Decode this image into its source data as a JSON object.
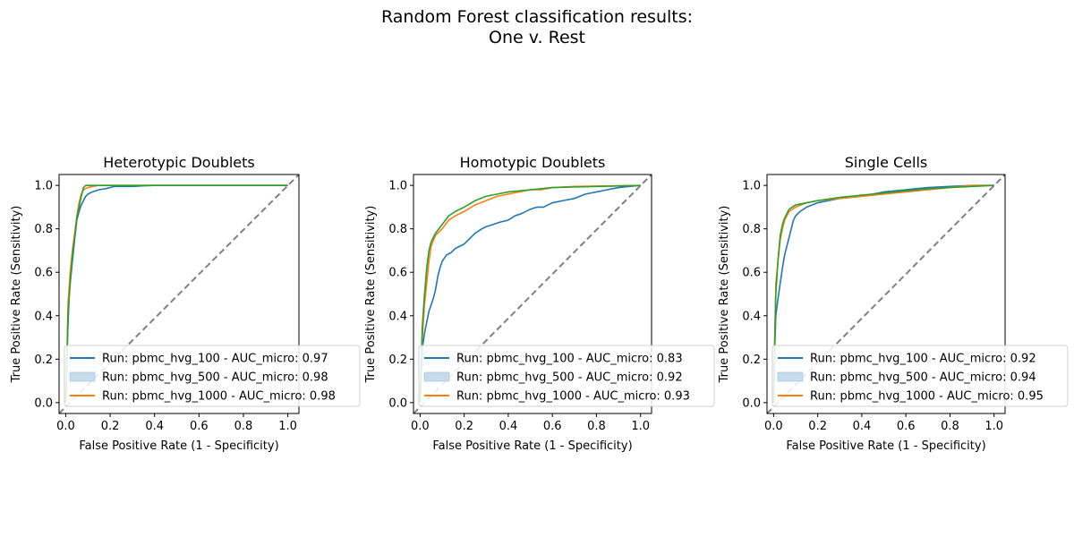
{
  "figure": {
    "suptitle_line1": "Random Forest classification results:",
    "suptitle_line2": "One v. Rest"
  },
  "colors": {
    "series_blue": "#1f77b4",
    "series_orange": "#ff7f0e",
    "series_green": "#2ca02c",
    "diagonal": "#808080",
    "legend_patch": "#c6dcec"
  },
  "chart_data": [
    {
      "type": "line",
      "title": "Heterotypic Doublets",
      "xlabel": "False Positive Rate (1 - Specificity)",
      "ylabel": "True Positive Rate (Sensitivity)",
      "xlim": [
        -0.03,
        1.05
      ],
      "ylim": [
        -0.05,
        1.05
      ],
      "xticks": [
        "0.0",
        "0.2",
        "0.4",
        "0.6",
        "0.8",
        "1.0"
      ],
      "yticks": [
        "0.0",
        "0.2",
        "0.4",
        "0.6",
        "0.8",
        "1.0"
      ],
      "legend_position": "lower left",
      "legend": [
        {
          "label": "Run: pbmc_hvg_100 - AUC_micro: 0.97",
          "marker": "line",
          "color": "#1f77b4"
        },
        {
          "label": "Run: pbmc_hvg_500 - AUC_micro: 0.98",
          "marker": "patch",
          "color": "#c6dcec"
        },
        {
          "label": "Run: pbmc_hvg_1000 - AUC_micro: 0.98",
          "marker": "line",
          "color": "#ff7f0e"
        }
      ],
      "series": [
        {
          "color": "#1f77b4",
          "x": [
            0,
            0.005,
            0.01,
            0.015,
            0.02,
            0.03,
            0.04,
            0.05,
            0.06,
            0.07,
            0.08,
            0.09,
            0.1,
            0.12,
            0.15,
            0.18,
            0.2,
            0.22,
            0.25,
            0.3,
            0.35,
            0.4,
            1.0
          ],
          "y": [
            0,
            0.2,
            0.35,
            0.48,
            0.55,
            0.65,
            0.75,
            0.84,
            0.88,
            0.91,
            0.93,
            0.95,
            0.96,
            0.97,
            0.98,
            0.985,
            0.99,
            0.995,
            0.995,
            0.995,
            0.998,
            1.0,
            1.0
          ]
        },
        {
          "color": "#ff7f0e",
          "x": [
            0,
            0.005,
            0.01,
            0.02,
            0.03,
            0.04,
            0.05,
            0.06,
            0.07,
            0.08,
            0.1,
            0.12,
            0.15,
            0.18,
            1.0
          ],
          "y": [
            0,
            0.2,
            0.45,
            0.6,
            0.7,
            0.78,
            0.86,
            0.92,
            0.96,
            0.98,
            0.99,
            0.995,
            1.0,
            1.0,
            1.0
          ]
        },
        {
          "color": "#2ca02c",
          "x": [
            0,
            0.005,
            0.01,
            0.02,
            0.03,
            0.04,
            0.05,
            0.06,
            0.07,
            0.08,
            0.09,
            0.1,
            0.12,
            0.15,
            0.2,
            1.0
          ],
          "y": [
            0,
            0.15,
            0.4,
            0.55,
            0.68,
            0.76,
            0.85,
            0.9,
            0.95,
            0.99,
            1.0,
            1.0,
            1.0,
            1.0,
            1.0,
            1.0
          ]
        }
      ]
    },
    {
      "type": "line",
      "title": "Homotypic Doublets",
      "xlabel": "False Positive Rate (1 - Specificity)",
      "ylabel": "True Positive Rate (Sensitivity)",
      "xlim": [
        -0.03,
        1.05
      ],
      "ylim": [
        -0.05,
        1.05
      ],
      "xticks": [
        "0.0",
        "0.2",
        "0.4",
        "0.6",
        "0.8",
        "1.0"
      ],
      "yticks": [
        "0.0",
        "0.2",
        "0.4",
        "0.6",
        "0.8",
        "1.0"
      ],
      "legend_position": "lower left",
      "legend": [
        {
          "label": "Run: pbmc_hvg_100 - AUC_micro: 0.83",
          "marker": "line",
          "color": "#1f77b4"
        },
        {
          "label": "Run: pbmc_hvg_500 - AUC_micro: 0.92",
          "marker": "patch",
          "color": "#c6dcec"
        },
        {
          "label": "Run: pbmc_hvg_1000 - AUC_micro: 0.93",
          "marker": "line",
          "color": "#ff7f0e"
        }
      ],
      "series": [
        {
          "color": "#1f77b4",
          "x": [
            0,
            0.01,
            0.02,
            0.03,
            0.04,
            0.05,
            0.06,
            0.07,
            0.08,
            0.09,
            0.1,
            0.12,
            0.14,
            0.16,
            0.18,
            0.2,
            0.22,
            0.25,
            0.28,
            0.3,
            0.33,
            0.36,
            0.4,
            0.43,
            0.46,
            0.5,
            0.53,
            0.56,
            0.6,
            0.65,
            0.7,
            0.75,
            0.8,
            0.85,
            0.9,
            0.95,
            1.0
          ],
          "y": [
            0,
            0.25,
            0.32,
            0.37,
            0.42,
            0.45,
            0.48,
            0.52,
            0.58,
            0.62,
            0.65,
            0.68,
            0.69,
            0.71,
            0.72,
            0.73,
            0.75,
            0.78,
            0.8,
            0.81,
            0.82,
            0.83,
            0.84,
            0.86,
            0.87,
            0.89,
            0.9,
            0.9,
            0.92,
            0.93,
            0.94,
            0.96,
            0.97,
            0.98,
            0.99,
            0.995,
            1.0
          ]
        },
        {
          "color": "#ff7f0e",
          "x": [
            0,
            0.01,
            0.02,
            0.03,
            0.04,
            0.05,
            0.07,
            0.1,
            0.13,
            0.16,
            0.2,
            0.25,
            0.3,
            0.35,
            0.4,
            0.45,
            0.5,
            0.55,
            0.6,
            0.7,
            1.0
          ],
          "y": [
            0,
            0.3,
            0.45,
            0.55,
            0.65,
            0.72,
            0.77,
            0.8,
            0.84,
            0.86,
            0.88,
            0.91,
            0.93,
            0.95,
            0.96,
            0.97,
            0.98,
            0.98,
            0.99,
            0.995,
            1.0
          ]
        },
        {
          "color": "#2ca02c",
          "x": [
            0,
            0.01,
            0.02,
            0.03,
            0.04,
            0.05,
            0.07,
            0.1,
            0.13,
            0.16,
            0.2,
            0.25,
            0.3,
            0.35,
            0.4,
            0.5,
            0.6,
            1.0
          ],
          "y": [
            0,
            0.35,
            0.5,
            0.62,
            0.7,
            0.74,
            0.78,
            0.82,
            0.86,
            0.88,
            0.9,
            0.93,
            0.95,
            0.96,
            0.97,
            0.98,
            0.99,
            1.0
          ]
        }
      ]
    },
    {
      "type": "line",
      "title": "Single Cells",
      "xlabel": "False Positive Rate (1 - Specificity)",
      "ylabel": "True Positive Rate (Sensitivity)",
      "xlim": [
        -0.03,
        1.05
      ],
      "ylim": [
        -0.05,
        1.05
      ],
      "xticks": [
        "0.0",
        "0.2",
        "0.4",
        "0.6",
        "0.8",
        "1.0"
      ],
      "yticks": [
        "0.0",
        "0.2",
        "0.4",
        "0.6",
        "0.8",
        "1.0"
      ],
      "legend_position": "lower left",
      "legend": [
        {
          "label": "Run: pbmc_hvg_100 - AUC_micro: 0.92",
          "marker": "line",
          "color": "#1f77b4"
        },
        {
          "label": "Run: pbmc_hvg_500 - AUC_micro: 0.94",
          "marker": "patch",
          "color": "#c6dcec"
        },
        {
          "label": "Run: pbmc_hvg_1000 - AUC_micro: 0.95",
          "marker": "line",
          "color": "#ff7f0e"
        }
      ],
      "series": [
        {
          "color": "#1f77b4",
          "x": [
            0,
            0.005,
            0.01,
            0.02,
            0.03,
            0.04,
            0.05,
            0.06,
            0.07,
            0.08,
            0.09,
            0.1,
            0.12,
            0.15,
            0.2,
            0.25,
            0.3,
            0.4,
            0.5,
            0.6,
            0.7,
            0.8,
            0.9,
            1.0
          ],
          "y": [
            0,
            0.25,
            0.4,
            0.48,
            0.55,
            0.62,
            0.68,
            0.72,
            0.76,
            0.8,
            0.84,
            0.86,
            0.88,
            0.9,
            0.92,
            0.93,
            0.94,
            0.95,
            0.97,
            0.98,
            0.99,
            0.995,
            1.0,
            1.0
          ]
        },
        {
          "color": "#ff7f0e",
          "x": [
            0,
            0.005,
            0.01,
            0.02,
            0.03,
            0.04,
            0.05,
            0.07,
            0.1,
            0.15,
            0.2,
            0.3,
            0.4,
            0.5,
            0.6,
            0.7,
            0.8,
            0.9,
            1.0
          ],
          "y": [
            0,
            0.3,
            0.55,
            0.65,
            0.75,
            0.8,
            0.84,
            0.88,
            0.9,
            0.92,
            0.93,
            0.94,
            0.95,
            0.96,
            0.97,
            0.98,
            0.99,
            1.0,
            1.0
          ]
        },
        {
          "color": "#2ca02c",
          "x": [
            0,
            0.005,
            0.01,
            0.02,
            0.03,
            0.04,
            0.05,
            0.07,
            0.1,
            0.15,
            0.2,
            0.3,
            0.4,
            0.5,
            0.6,
            0.7,
            0.8,
            0.9,
            1.0
          ],
          "y": [
            0,
            0.28,
            0.5,
            0.66,
            0.77,
            0.82,
            0.85,
            0.89,
            0.91,
            0.92,
            0.93,
            0.945,
            0.955,
            0.965,
            0.975,
            0.985,
            0.99,
            0.995,
            1.0
          ]
        }
      ]
    }
  ]
}
